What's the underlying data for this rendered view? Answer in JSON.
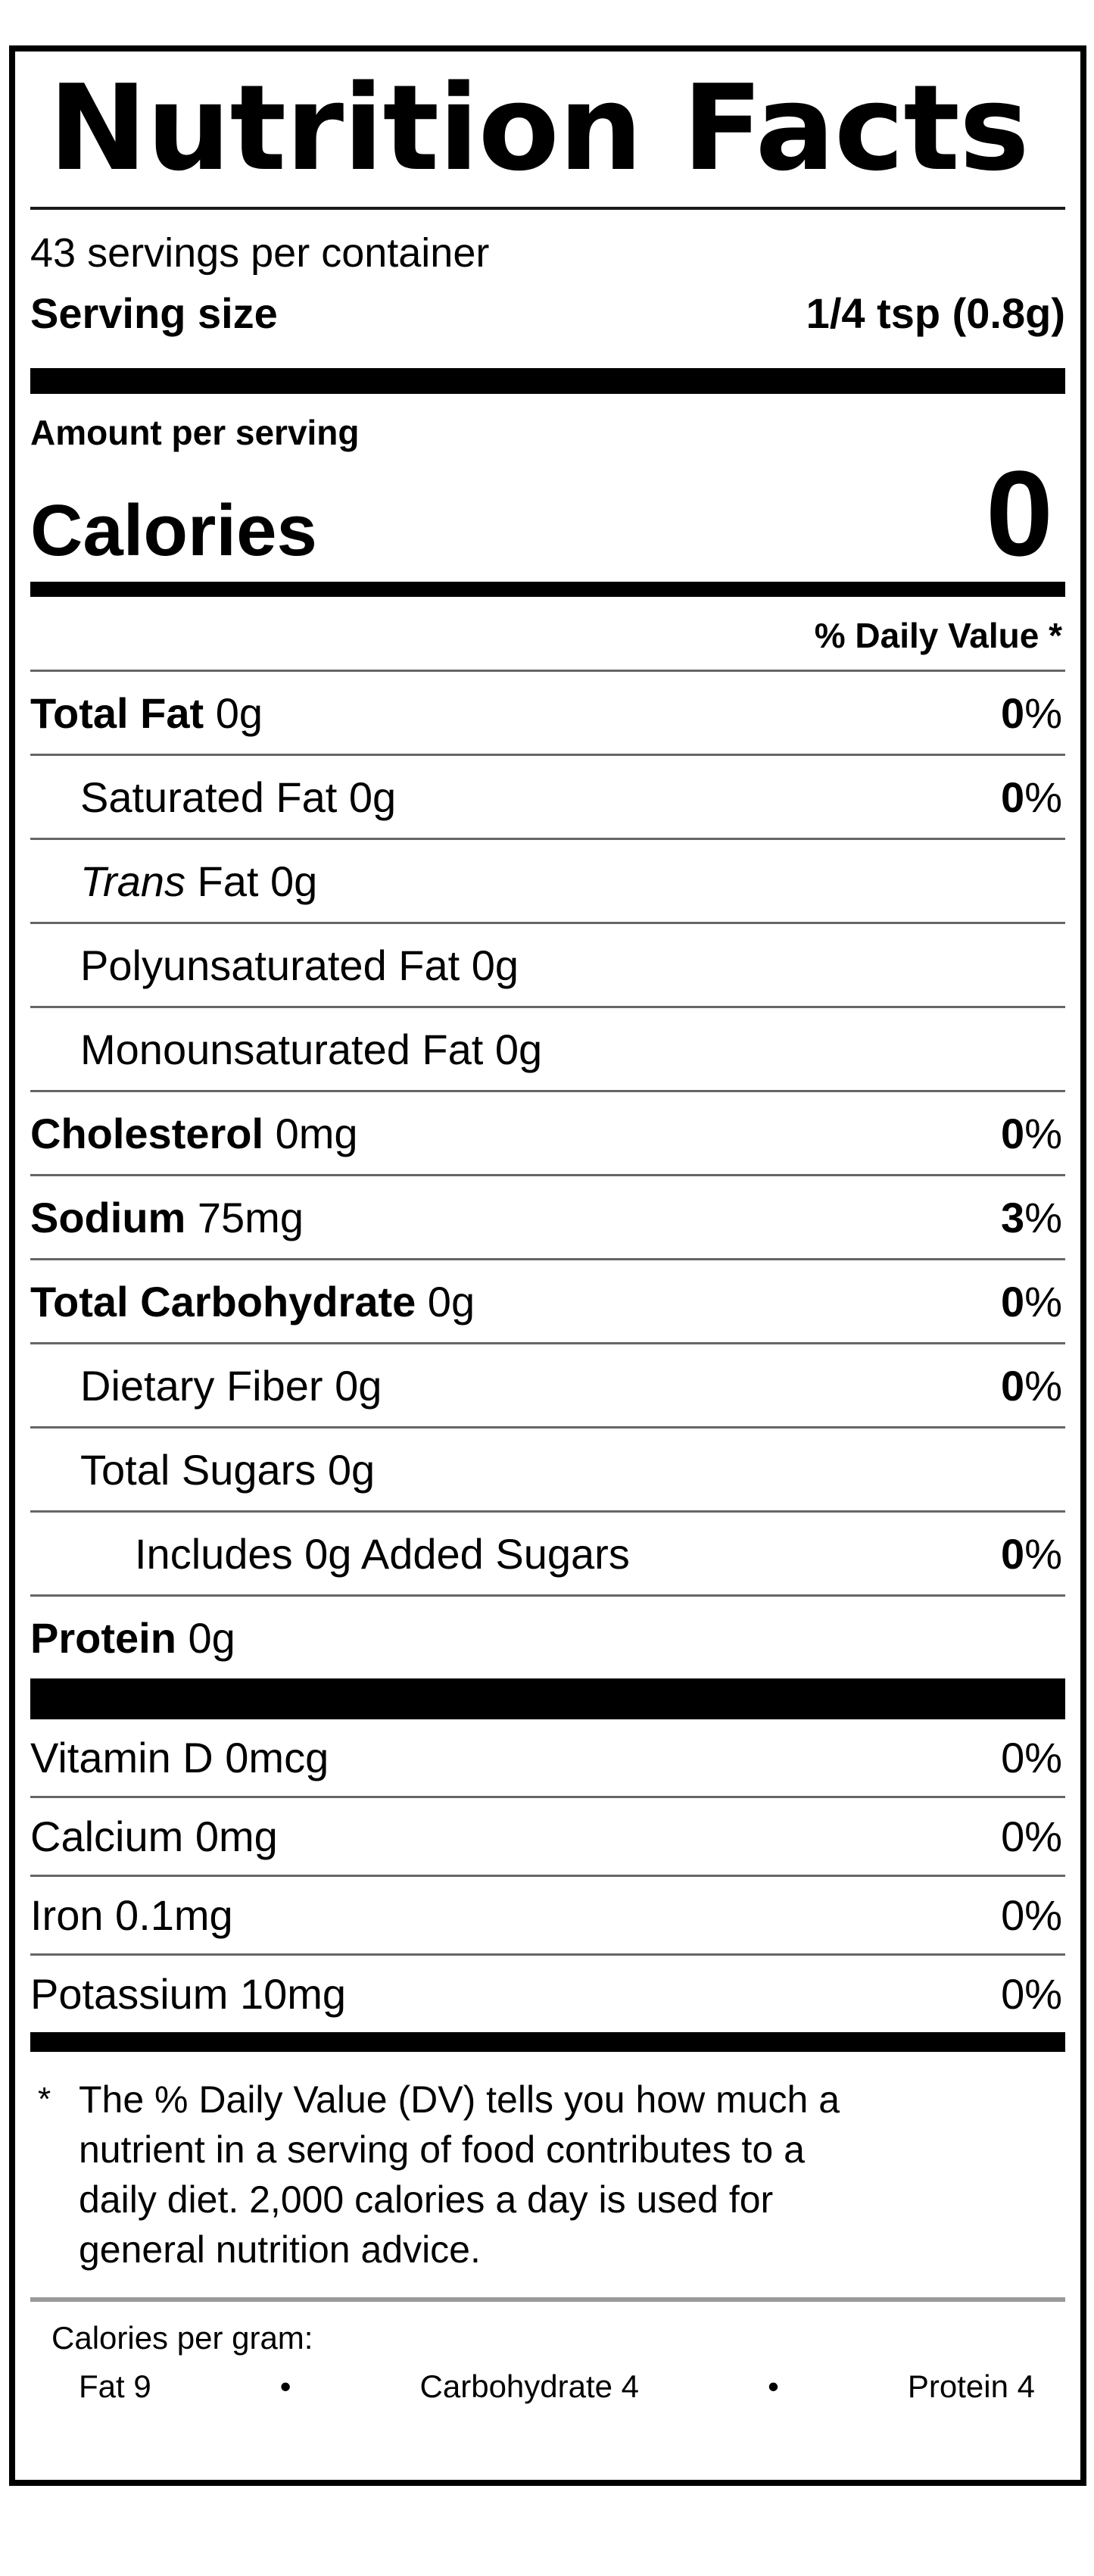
{
  "label": {
    "title": "Nutrition Facts",
    "servings_per_container": "43 servings per container",
    "serving_size": {
      "label": "Serving size",
      "value": "1/4 tsp (0.8g)"
    },
    "amount_per_serving": "Amount per serving",
    "calories": {
      "label": "Calories",
      "value": "0"
    },
    "daily_value_header": "% Daily Value *",
    "rows": [
      {
        "label_bold": "Total Fat",
        "label_text": " 0g",
        "dv_value": "0",
        "dv_sign": "%"
      },
      {
        "label_text": "Saturated Fat 0g",
        "dv_value": "0",
        "dv_sign": "%"
      },
      {
        "label_italic": "Trans",
        "label_text": " Fat 0g"
      },
      {
        "label_text": "Polyunsaturated Fat 0g"
      },
      {
        "label_text": "Monounsaturated Fat 0g"
      },
      {
        "label_bold": "Cholesterol",
        "label_text": " 0mg",
        "dv_value": "0",
        "dv_sign": "%"
      },
      {
        "label_bold": "Sodium",
        "label_text": " 75mg",
        "dv_value": "3",
        "dv_sign": "%"
      },
      {
        "label_bold": "Total Carbohydrate",
        "label_text": " 0g",
        "dv_value": "0",
        "dv_sign": "%"
      },
      {
        "label_text": "Dietary Fiber 0g",
        "dv_value": "0",
        "dv_sign": "%"
      },
      {
        "label_text": "Total Sugars 0g"
      },
      {
        "label_text": "Includes 0g Added Sugars",
        "dv_value": "0",
        "dv_sign": "%"
      },
      {
        "label_bold": "Protein",
        "label_text": " 0g"
      }
    ],
    "vitamins": [
      {
        "label": "Vitamin D 0mcg",
        "dv": "0%"
      },
      {
        "label": "Calcium 0mg",
        "dv": "0%"
      },
      {
        "label": "Iron 0.1mg",
        "dv": "0%"
      },
      {
        "label": "Potassium 10mg",
        "dv": "0%"
      }
    ],
    "footnote_marker": "*",
    "footnote_lines": [
      "The % Daily Value (DV) tells you how much a",
      "nutrient in a serving of food contributes to a",
      "daily diet. 2,000 calories a day is used for",
      "general nutrition advice."
    ],
    "calories_per_gram": {
      "label": "Calories per gram:",
      "bullet": "•",
      "items": [
        {
          "name": "Fat 9"
        },
        {
          "name": "Carbohydrate 4"
        },
        {
          "name": "Protein 4"
        }
      ]
    },
    "colors": {
      "ink": "#000000",
      "hairline": "#666666",
      "background": "#ffffff"
    }
  }
}
